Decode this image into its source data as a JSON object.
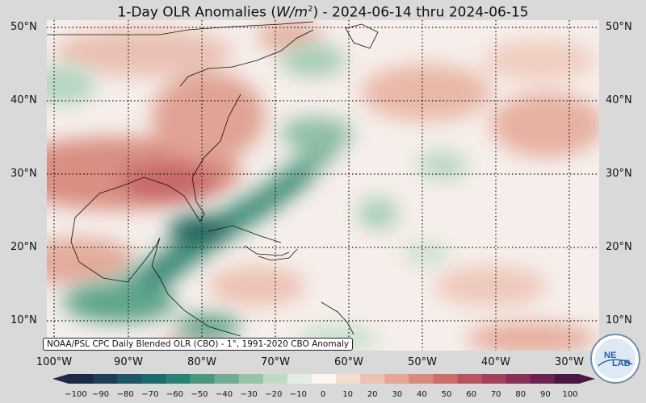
{
  "title": {
    "prefix": "1-Day OLR Anomalies (",
    "unit_base": "W/m",
    "unit_exp": "2",
    "suffix": ") - 2024-06-14 thru 2024-06-15"
  },
  "map": {
    "lat_labels": [
      "50°N",
      "40°N",
      "30°N",
      "20°N",
      "10°N"
    ],
    "lon_labels": [
      "100°W",
      "90°W",
      "80°W",
      "70°W",
      "60°W",
      "50°W",
      "40°W",
      "30°W"
    ],
    "source_note": "NOAA/PSL CPC Daily Blended OLR (CBO) - 1°, 1991-2020 CBO Anomaly"
  },
  "colorbar": {
    "ticks": [
      "−100",
      "−90",
      "−80",
      "−70",
      "−60",
      "−50",
      "−40",
      "−30",
      "−20",
      "−10",
      "0",
      "10",
      "20",
      "30",
      "40",
      "50",
      "60",
      "70",
      "80",
      "90",
      "100"
    ],
    "colors": [
      "#1c2a45",
      "#1e3e57",
      "#1f5566",
      "#1b6b6f",
      "#2a8175",
      "#4a977f",
      "#6fae92",
      "#97c4a8",
      "#bedac3",
      "#e3ede3",
      "#fbf4ef",
      "#f4dcd0",
      "#eec2b2",
      "#e5a695",
      "#da8a7d",
      "#cb6d6a",
      "#b85460",
      "#a3405c",
      "#8a2f58",
      "#6c2350",
      "#4a1742"
    ]
  },
  "logo": {
    "text1": "NE",
    "text2": "LAB"
  }
}
